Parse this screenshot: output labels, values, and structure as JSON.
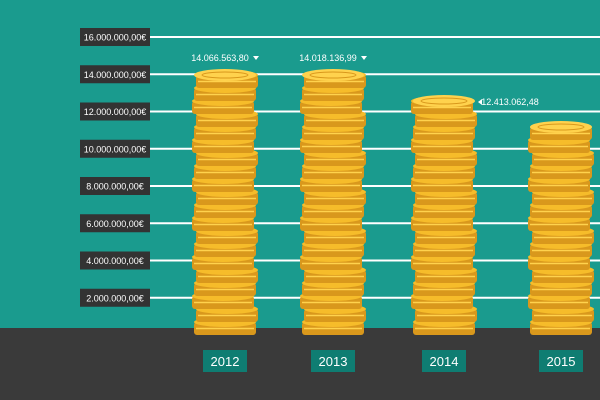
{
  "colors": {
    "background": "#1a9b8e",
    "ground": "#3a3a3a",
    "label_box": "#333333",
    "year_box": "#0f7d72",
    "coin_fill": "#f6bc2a",
    "coin_shadow": "#d9981c",
    "coin_highlight": "#ffd24d",
    "gridline": "#ffffff"
  },
  "chart_data": {
    "type": "bar",
    "categories": [
      "2012",
      "2013",
      "2014",
      "2015"
    ],
    "values": [
      14066563.8,
      14018136.99,
      12413062.48,
      11000000
    ],
    "data_labels": [
      "14.066.563,80",
      "14.018.136,99",
      "12.413.062,48",
      ""
    ],
    "ylim": [
      0,
      16000000
    ],
    "yticks": [
      2000000,
      4000000,
      6000000,
      8000000,
      10000000,
      12000000,
      14000000,
      16000000
    ],
    "ytick_labels": [
      "2.000.000,00€",
      "4.000.000,00€",
      "6.000.000,00€",
      "8.000.000,00€",
      "10.000.000,00€",
      "12.000.000,00€",
      "14.000.000,00€",
      "16.000.000,00€"
    ],
    "grid": true,
    "title": "",
    "xlabel": "",
    "ylabel": ""
  }
}
